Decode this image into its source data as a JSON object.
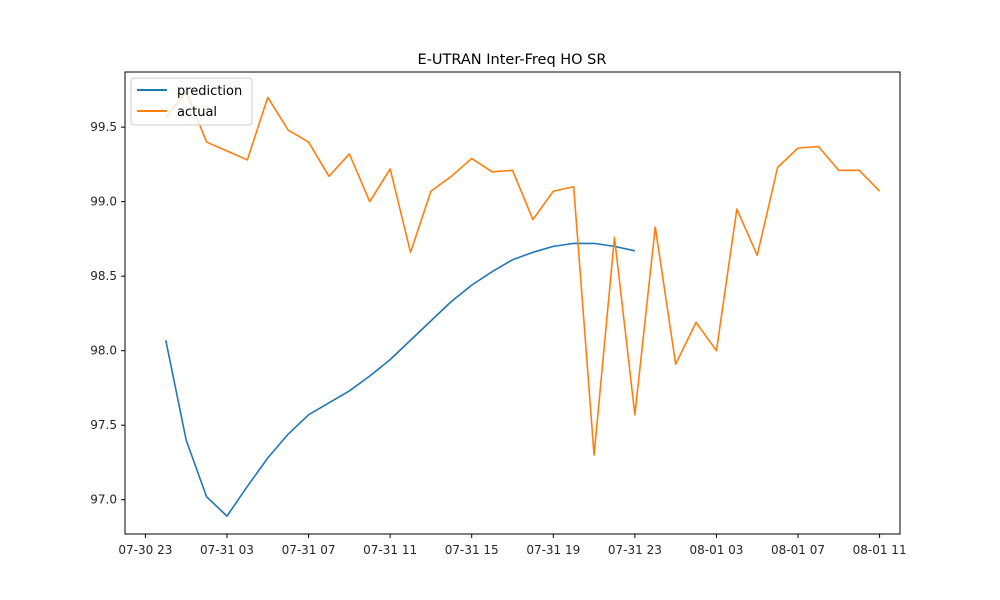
{
  "chart_data": {
    "type": "line",
    "title": "E-UTRAN Inter-Freq HO SR",
    "xlabel": "",
    "ylabel": "",
    "x_ticks": [
      "07-30 23",
      "07-31 03",
      "07-31 07",
      "07-31 11",
      "07-31 15",
      "07-31 19",
      "07-31 23",
      "08-01 03",
      "08-01 07",
      "08-01 11"
    ],
    "y_ticks": [
      "97.0",
      "97.5",
      "98.0",
      "98.5",
      "99.0",
      "99.5"
    ],
    "xlim": [
      "2023-07-30 22:00",
      "2023-08-01 12:00"
    ],
    "ylim": [
      96.77,
      99.87
    ],
    "grid": false,
    "legend_position": "top-left",
    "series": [
      {
        "name": "prediction",
        "color": "#1f77b4",
        "x": [
          "2023-07-31 00:00",
          "2023-07-31 01:00",
          "2023-07-31 02:00",
          "2023-07-31 03:00",
          "2023-07-31 04:00",
          "2023-07-31 05:00",
          "2023-07-31 06:00",
          "2023-07-31 07:00",
          "2023-07-31 08:00",
          "2023-07-31 09:00",
          "2023-07-31 10:00",
          "2023-07-31 11:00",
          "2023-07-31 12:00",
          "2023-07-31 13:00",
          "2023-07-31 14:00",
          "2023-07-31 15:00",
          "2023-07-31 16:00",
          "2023-07-31 17:00",
          "2023-07-31 18:00",
          "2023-07-31 19:00",
          "2023-07-31 20:00",
          "2023-07-31 21:00",
          "2023-07-31 22:00",
          "2023-07-31 23:00"
        ],
        "y": [
          98.07,
          97.4,
          97.02,
          96.89,
          97.09,
          97.28,
          97.44,
          97.57,
          97.65,
          97.73,
          97.83,
          97.94,
          98.07,
          98.2,
          98.33,
          98.44,
          98.53,
          98.61,
          98.66,
          98.7,
          98.72,
          98.72,
          98.7,
          98.67
        ]
      },
      {
        "name": "actual",
        "color": "#ff7f0e",
        "x": [
          "2023-07-31 00:00",
          "2023-07-31 01:00",
          "2023-07-31 02:00",
          "2023-07-31 03:00",
          "2023-07-31 04:00",
          "2023-07-31 05:00",
          "2023-07-31 06:00",
          "2023-07-31 07:00",
          "2023-07-31 08:00",
          "2023-07-31 09:00",
          "2023-07-31 10:00",
          "2023-07-31 11:00",
          "2023-07-31 12:00",
          "2023-07-31 13:00",
          "2023-07-31 14:00",
          "2023-07-31 15:00",
          "2023-07-31 16:00",
          "2023-07-31 17:00",
          "2023-07-31 18:00",
          "2023-07-31 19:00",
          "2023-07-31 20:00",
          "2023-07-31 21:00",
          "2023-07-31 22:00",
          "2023-07-31 23:00",
          "2023-08-01 00:00",
          "2023-08-01 01:00",
          "2023-08-01 02:00",
          "2023-08-01 03:00",
          "2023-08-01 04:00",
          "2023-08-01 05:00",
          "2023-08-01 06:00",
          "2023-08-01 07:00",
          "2023-08-01 08:00",
          "2023-08-01 09:00",
          "2023-08-01 10:00",
          "2023-08-01 11:00"
        ],
        "y": [
          99.56,
          99.74,
          99.4,
          99.34,
          99.28,
          99.7,
          99.48,
          99.4,
          99.17,
          99.32,
          99.0,
          99.22,
          98.66,
          99.07,
          99.17,
          99.29,
          99.2,
          99.21,
          98.88,
          99.07,
          99.1,
          97.3,
          98.76,
          97.57,
          98.83,
          97.91,
          98.19,
          98.0,
          98.95,
          98.64,
          99.23,
          99.36,
          99.37,
          99.21,
          99.21,
          99.07
        ]
      }
    ]
  }
}
